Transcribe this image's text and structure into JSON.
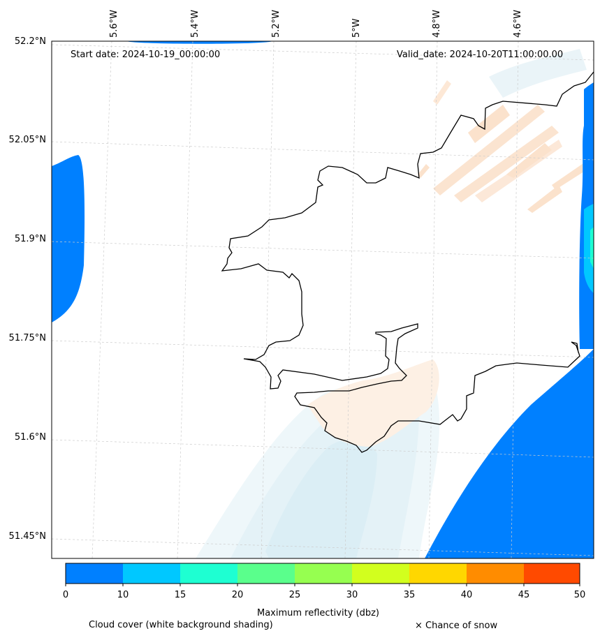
{
  "header": {
    "start_date": "Start date: 2024-10-19_00:00:00",
    "valid_date": "Valid_date: 2024-10-20T11:00:00.00"
  },
  "lat_labels": [
    "52.2°N",
    "52.05°N",
    "51.9°N",
    "51.75°N",
    "51.6°N",
    "51.45°N"
  ],
  "lon_labels": [
    "5.6°W",
    "5.4°W",
    "5.2°W",
    "5°W",
    "4.8°W",
    "4.6°W"
  ],
  "colorbar": {
    "title": "Maximum reflectivity (dbz)",
    "ticks": [
      "0",
      "10",
      "15",
      "20",
      "25",
      "30",
      "35",
      "40",
      "45",
      "50"
    ],
    "colors": [
      "#0080ff",
      "#00c8ff",
      "#1effd2",
      "#5aff8c",
      "#96ff50",
      "#d2ff1e",
      "#ffd700",
      "#ff8c00",
      "#ff4a00"
    ]
  },
  "legend": {
    "cloud_cover": "Cloud cover (white background shading)",
    "snow": "× Chance of snow"
  }
}
